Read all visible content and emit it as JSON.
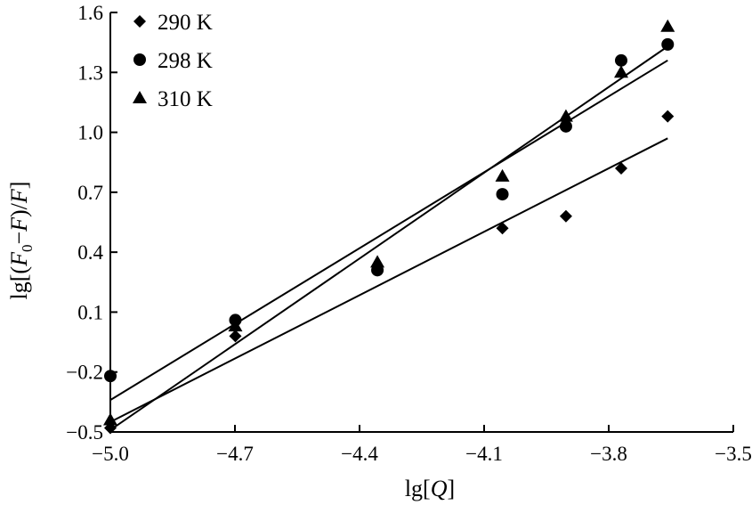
{
  "chart_data": {
    "type": "scatter",
    "title": "",
    "xlabel": "lg[Q]",
    "ylabel": "lg[(F0−F)/F]",
    "xlim": [
      -5.0,
      -3.5
    ],
    "ylim": [
      -0.5,
      1.6
    ],
    "xticks": [
      -5.0,
      -4.7,
      -4.4,
      -4.1,
      -3.8,
      -3.5
    ],
    "yticks": [
      -0.5,
      -0.2,
      0.1,
      0.4,
      0.7,
      1.0,
      1.3,
      1.6
    ],
    "xtick_labels": [
      "−5.0",
      "−4.7",
      "−4.4",
      "−4.1",
      "−3.8",
      "−3.5"
    ],
    "ytick_labels": [
      "−0.5",
      "−0.2",
      "0.1",
      "0.4",
      "0.7",
      "1.0",
      "1.3",
      "1.6"
    ],
    "grid": false,
    "legend": "top-left",
    "series": [
      {
        "name": "290 K",
        "marker": "diamond",
        "color": "#000000",
        "x": [
          -5.0,
          -4.699,
          -4.056,
          -3.903,
          -3.77,
          -3.658
        ],
        "y": [
          -0.48,
          -0.02,
          0.52,
          0.58,
          0.82,
          1.08
        ],
        "fit": {
          "x": [
            -5.0,
            -3.658
          ],
          "y": [
            -0.45,
            0.97
          ]
        }
      },
      {
        "name": "298 K",
        "marker": "circle",
        "color": "#000000",
        "x": [
          -5.0,
          -4.699,
          -4.357,
          -4.056,
          -3.903,
          -3.77,
          -3.658
        ],
        "y": [
          -0.22,
          0.06,
          0.31,
          0.69,
          1.03,
          1.36,
          1.44
        ],
        "fit": {
          "x": [
            -5.0,
            -3.658
          ],
          "y": [
            -0.34,
            1.36
          ]
        }
      },
      {
        "name": "310 K",
        "marker": "triangle",
        "color": "#000000",
        "x": [
          -5.0,
          -4.699,
          -4.357,
          -4.056,
          -3.903,
          -3.77,
          -3.658
        ],
        "y": [
          -0.44,
          0.03,
          0.35,
          0.78,
          1.08,
          1.3,
          1.53
        ],
        "fit": {
          "x": [
            -5.0,
            -3.658
          ],
          "y": [
            -0.49,
            1.43
          ]
        }
      }
    ]
  },
  "labels": {
    "ylabel_parts": [
      "lg[(",
      "F",
      "0",
      "−",
      "F",
      ")/",
      "F",
      "]"
    ],
    "xlabel_parts": [
      "lg[",
      "Q",
      "]"
    ]
  }
}
